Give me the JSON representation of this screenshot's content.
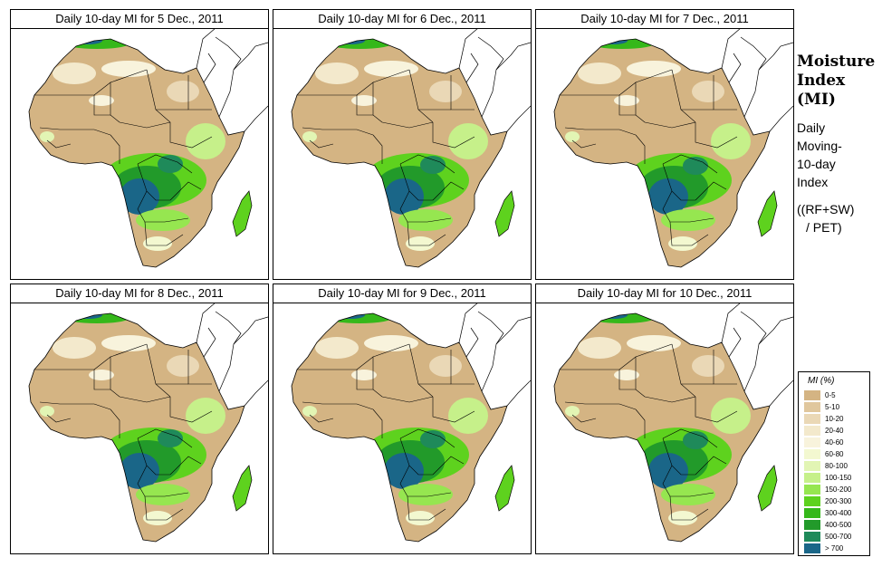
{
  "panels": [
    {
      "title": "Daily 10-day MI for  5 Dec., 2011"
    },
    {
      "title": "Daily 10-day MI for  6 Dec., 2011"
    },
    {
      "title": "Daily 10-day MI for  7 Dec., 2011"
    },
    {
      "title": "Daily 10-day MI for  8 Dec., 2011"
    },
    {
      "title": "Daily 10-day MI for  9 Dec., 2011"
    },
    {
      "title": "Daily 10-day MI for  10 Dec., 2011"
    }
  ],
  "sidebar": {
    "title_line1": "Moisture",
    "title_line2": "Index",
    "title_line3": "(MI)",
    "desc_line1": "Daily",
    "desc_line2": "Moving-",
    "desc_line3": "10-day",
    "desc_line4": "Index",
    "formula_line1": "((RF+SW)",
    "formula_line2": "/ PET)"
  },
  "legend": {
    "title": "MI (%)",
    "classes": [
      {
        "label": "0-5",
        "color": "#d4b483"
      },
      {
        "label": "5-10",
        "color": "#e0c79d"
      },
      {
        "label": "10-20",
        "color": "#ead8b6"
      },
      {
        "label": "20-40",
        "color": "#f3e9cc"
      },
      {
        "label": "40-60",
        "color": "#f8f3dc"
      },
      {
        "label": "60-80",
        "color": "#f3f8d0"
      },
      {
        "label": "80-100",
        "color": "#e2f5b4"
      },
      {
        "label": "100-150",
        "color": "#c6f08a"
      },
      {
        "label": "150-200",
        "color": "#96e650"
      },
      {
        "label": "200-300",
        "color": "#5ed21e"
      },
      {
        "label": "300-400",
        "color": "#35b81a"
      },
      {
        "label": "400-500",
        "color": "#229a2a"
      },
      {
        "label": "500-700",
        "color": "#1f8a5a"
      },
      {
        "label": "> 700",
        "color": "#1a6688"
      }
    ]
  }
}
